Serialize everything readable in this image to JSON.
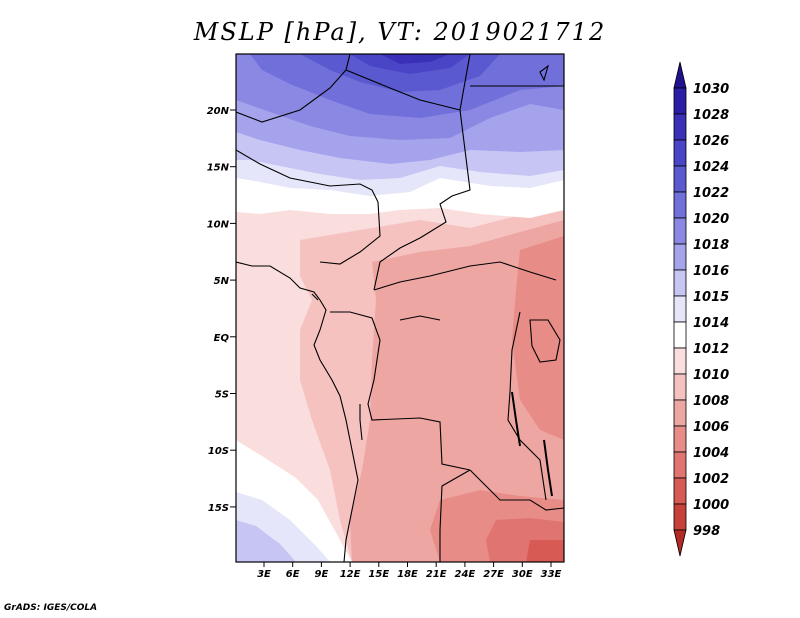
{
  "title": "MSLP [hPa], VT: 2019021712",
  "credit": "GrADS: IGES/COLA",
  "map": {
    "lat_labels": [
      "20N",
      "15N",
      "10N",
      "5N",
      "EQ",
      "5S",
      "10S",
      "15S"
    ],
    "lon_labels": [
      "3E",
      "6E",
      "9E",
      "12E",
      "15E",
      "18E",
      "21E",
      "24E",
      "27E",
      "30E",
      "33E"
    ]
  },
  "colorbar": {
    "levels": [
      "1030",
      "1028",
      "1026",
      "1024",
      "1022",
      "1020",
      "1018",
      "1016",
      "1015",
      "1014",
      "1012",
      "1010",
      "1008",
      "1006",
      "1004",
      "1002",
      "1000",
      "998"
    ],
    "colors": [
      "#1f118f",
      "#2a1da6",
      "#3a30b8",
      "#4a44c6",
      "#5b59cf",
      "#716fda",
      "#8a88e3",
      "#a5a3ec",
      "#c6c5f4",
      "#e6e6fa",
      "#ffffff",
      "#fadddd",
      "#f5c2c0",
      "#eea6a3",
      "#e88c88",
      "#e07470",
      "#d85a55",
      "#c8403a",
      "#b22a25"
    ]
  }
}
